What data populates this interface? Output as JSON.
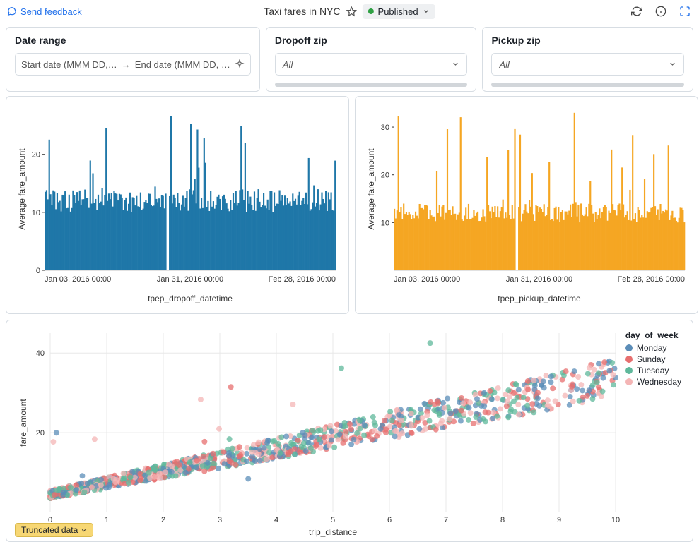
{
  "header": {
    "feedback_label": "Send feedback",
    "title": "Taxi fares in NYC",
    "status_label": "Published"
  },
  "filters": {
    "date_range": {
      "title": "Date range",
      "start_placeholder": "Start date (MMM DD,…",
      "end_placeholder": "End date (MMM DD, …"
    },
    "dropoff": {
      "title": "Dropoff zip",
      "value": "All"
    },
    "pickup": {
      "title": "Pickup zip",
      "value": "All"
    }
  },
  "chart_left": {
    "type": "bar-dense",
    "color": "#1f77a8",
    "ylabel": "Average fare_amount",
    "xlabel": "tpep_dropoff_datetime",
    "yticks": [
      0,
      10,
      20
    ],
    "ylim": [
      0,
      28
    ],
    "xticks": [
      "Jan 03, 2016 00:00",
      "Jan 31, 2016 00:00",
      "Feb 28, 2016 00:00"
    ],
    "gap_at": 0.42,
    "base_level": 12,
    "spike_max": 27
  },
  "chart_right": {
    "type": "bar-dense",
    "color": "#f5a623",
    "ylabel": "Average fare_amount",
    "xlabel": "tpep_pickup_datetime",
    "yticks": [
      10,
      20,
      30
    ],
    "ylim": [
      0,
      34
    ],
    "xticks": [
      "Jan 03, 2016 00:00",
      "Jan 31, 2016 00:00",
      "Feb 28, 2016 00:00"
    ],
    "gap_at": 0.42,
    "base_level": 12,
    "spike_max": 33
  },
  "scatter": {
    "type": "scatter",
    "xlabel": "trip_distance",
    "ylabel": "fare_amount",
    "xlim": [
      0,
      10
    ],
    "ylim": [
      0,
      45
    ],
    "xticks": [
      0,
      1,
      2,
      3,
      4,
      5,
      6,
      7,
      8,
      9,
      10
    ],
    "yticks": [
      20,
      40
    ],
    "legend_title": "day_of_week",
    "legend": [
      {
        "label": "Monday",
        "color": "#5b8db8"
      },
      {
        "label": "Sunday",
        "color": "#e76f6f"
      },
      {
        "label": "Tuesday",
        "color": "#5fb89b"
      },
      {
        "label": "Wednesday",
        "color": "#f4b5b5"
      }
    ],
    "n_points": 1200,
    "slope": 2.9,
    "intercept": 4.5,
    "jitter": 4.0,
    "dot_radius": 4,
    "dot_opacity": 0.75
  },
  "truncated_label": "Truncated data"
}
